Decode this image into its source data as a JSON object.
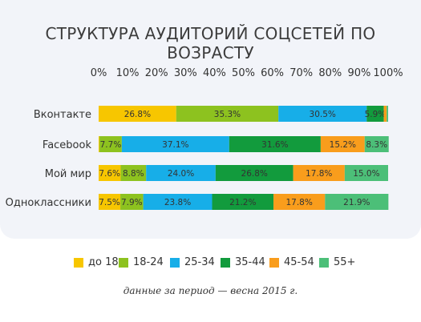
{
  "chart_data": {
    "type": "bar",
    "orientation": "horizontal",
    "stacked": true,
    "title": "СТРУКТУРА АУДИТОРИЙ СОЦСЕТЕЙ  ПО ВОЗРАСТУ",
    "categories": [
      "Вконтакте",
      "Facebook",
      "Мой мир",
      "Одноклассники"
    ],
    "series": [
      {
        "name": "до 18",
        "color": "#f7c600",
        "values": [
          26.8,
          0.3,
          7.6,
          7.5
        ]
      },
      {
        "name": "18-24",
        "color": "#8dc21f",
        "values": [
          35.3,
          7.7,
          8.8,
          7.9
        ]
      },
      {
        "name": "25-34",
        "color": "#17aee8",
        "values": [
          30.5,
          37.1,
          24.0,
          23.8
        ]
      },
      {
        "name": "35-44",
        "color": "#129b3d",
        "values": [
          5.9,
          31.6,
          26.8,
          21.2
        ]
      },
      {
        "name": "45-54",
        "color": "#f99d1c",
        "values": [
          1.0,
          15.2,
          17.8,
          17.8
        ]
      },
      {
        "name": "55+",
        "color": "#4cbf78",
        "values": [
          0.5,
          8.3,
          15.0,
          21.9
        ]
      }
    ],
    "data_labels": [
      [
        "26.8%",
        "35.3%",
        "30.5%",
        "5.9%",
        "",
        ""
      ],
      [
        "",
        "7.7%",
        "37.1%",
        "31.6%",
        "15.2%",
        "8.3%"
      ],
      [
        "7.6%",
        "8.8%",
        "24.0%",
        "26.8%",
        "17.8%",
        "15.0%"
      ],
      [
        "7.5%",
        "7.9%",
        "23.8%",
        "21.2%",
        "17.8%",
        "21.9%"
      ]
    ],
    "x_ticks": [
      "0%",
      "10%",
      "20%",
      "30%",
      "40%",
      "50%",
      "60%",
      "70%",
      "80%",
      "90%",
      "100%"
    ],
    "xlim": [
      0,
      100
    ],
    "grid": false,
    "legend_position": "bottom"
  },
  "footnote": "данные за период — весна 2015 г."
}
